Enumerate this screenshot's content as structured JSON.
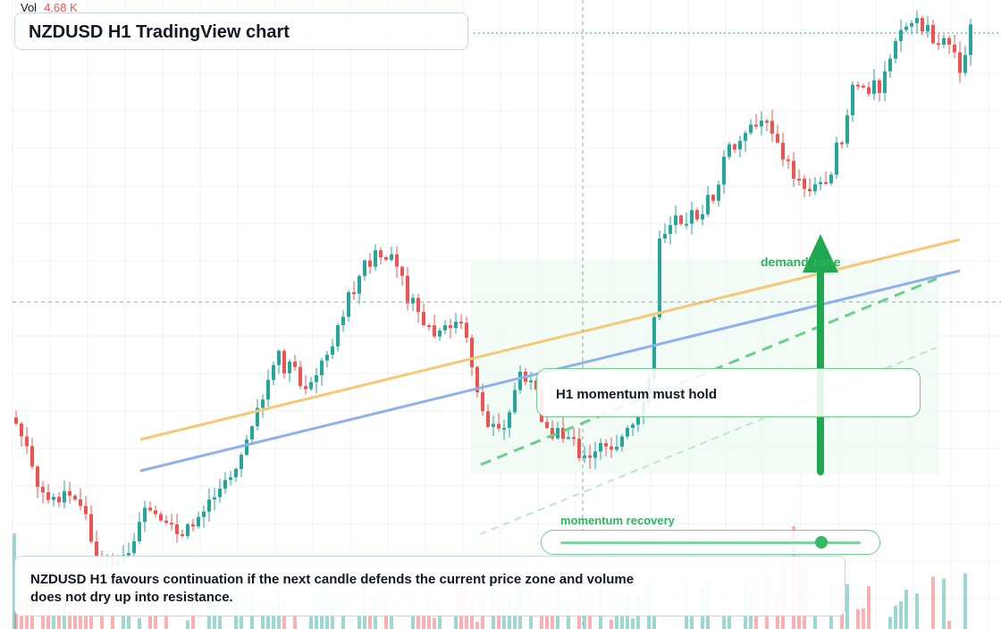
{
  "volume": {
    "label": "Vol",
    "value": "4.68 K"
  },
  "chart": {
    "title": "NZDUSD H1 TradingView chart"
  },
  "annotations": {
    "note": "H1 momentum must hold",
    "zone_label": "demand zone",
    "momentum_label": "momentum recovery",
    "momentum_level": 0.87
  },
  "caption": "NZDUSD H1 favours continuation if the next candle defends the current price zone and volume does not dry up into resistance.",
  "colors": {
    "up": "#26a69a",
    "down": "#ef5350",
    "trend_orange": "#f7c873",
    "trend_blue": "#8fb0ee",
    "accent_green": "#1fa84f",
    "zone_fill": "#e8f7ec"
  }
}
